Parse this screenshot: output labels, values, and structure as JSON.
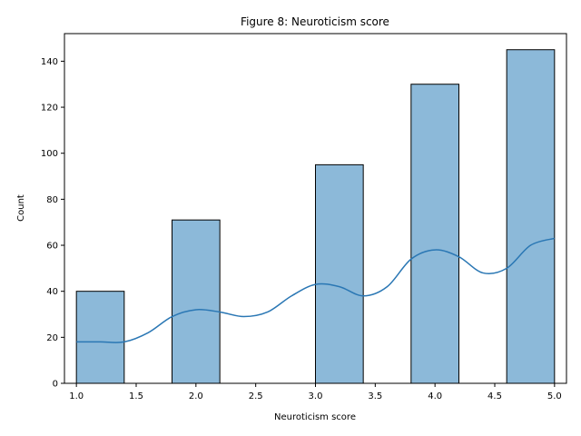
{
  "chart_data": {
    "type": "bar",
    "title": "Figure 8: Neuroticism score",
    "xlabel": "Neuroticism score",
    "ylabel": "Count",
    "bins": [
      {
        "start": 1.0,
        "end": 1.4,
        "count": 40
      },
      {
        "start": 1.4,
        "end": 1.8,
        "count": 0
      },
      {
        "start": 1.8,
        "end": 2.2,
        "count": 71
      },
      {
        "start": 2.2,
        "end": 2.6,
        "count": 0
      },
      {
        "start": 2.6,
        "end": 3.0,
        "count": 0
      },
      {
        "start": 3.0,
        "end": 3.4,
        "count": 95
      },
      {
        "start": 3.4,
        "end": 3.8,
        "count": 0
      },
      {
        "start": 3.8,
        "end": 4.2,
        "count": 130
      },
      {
        "start": 4.2,
        "end": 4.6,
        "count": 0
      },
      {
        "start": 4.6,
        "end": 5.0,
        "count": 145
      }
    ],
    "kde": {
      "x": [
        1.0,
        1.2,
        1.4,
        1.6,
        1.8,
        2.0,
        2.2,
        2.4,
        2.6,
        2.8,
        3.0,
        3.2,
        3.4,
        3.6,
        3.8,
        4.0,
        4.2,
        4.4,
        4.6,
        4.8,
        5.0
      ],
      "y": [
        18,
        18,
        18,
        22,
        29,
        32,
        31,
        29,
        31,
        38,
        43,
        42,
        38,
        42,
        54,
        58,
        55,
        48,
        50,
        60,
        63
      ]
    },
    "xlim": [
      0.9,
      5.1
    ],
    "ylim": [
      0,
      152
    ],
    "xticks": [
      "1.0",
      "1.5",
      "2.0",
      "2.5",
      "3.0",
      "3.5",
      "4.0",
      "4.5",
      "5.0"
    ],
    "yticks": [
      "0",
      "20",
      "40",
      "60",
      "80",
      "100",
      "120",
      "140"
    ],
    "grid": false,
    "colors": {
      "bar_fill": "#8cb9d9",
      "bar_edge": "#000000",
      "kde_line": "#2a77b4",
      "axis": "#000000"
    }
  }
}
